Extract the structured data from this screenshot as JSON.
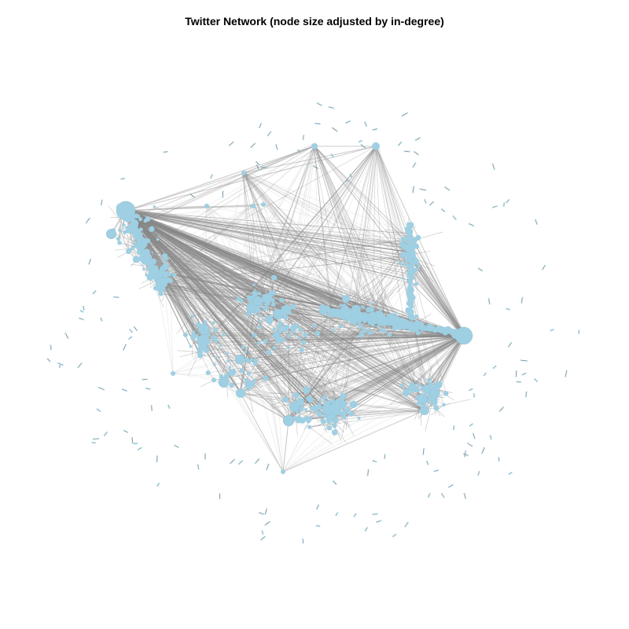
{
  "title": "Twitter Network (node size adjusted by in-degree)",
  "colors": {
    "background": "#ffffff",
    "node_fill": "#9ecfe3",
    "edge_dense": "#8a8a8a",
    "edge_light": "#d4d4d4",
    "title": "#000000"
  }
}
